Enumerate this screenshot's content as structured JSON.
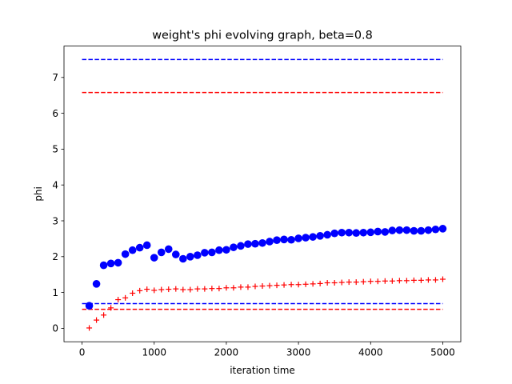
{
  "chart_data": {
    "type": "scatter",
    "title": "weight's phi evolving graph, beta=0.8",
    "xlabel": "iteration time",
    "ylabel": "phi",
    "xlim": [
      -250,
      5250
    ],
    "ylim": [
      -0.375,
      7.875
    ],
    "xticks": [
      0,
      1000,
      2000,
      3000,
      4000,
      5000
    ],
    "yticks": [
      0,
      1,
      2,
      3,
      4,
      5,
      6,
      7
    ],
    "grid": false,
    "legend": "none",
    "series": [
      {
        "marker": "circle",
        "color": "#0000ff",
        "x": [
          100,
          200,
          300,
          400,
          500,
          600,
          700,
          800,
          900,
          1000,
          1100,
          1200,
          1300,
          1400,
          1500,
          1600,
          1700,
          1800,
          1900,
          2000,
          2100,
          2200,
          2300,
          2400,
          2500,
          2600,
          2700,
          2800,
          2900,
          3000,
          3100,
          3200,
          3300,
          3400,
          3500,
          3600,
          3700,
          3800,
          3900,
          4000,
          4100,
          4200,
          4300,
          4400,
          4500,
          4600,
          4700,
          4800,
          4900,
          5000
        ],
        "y": [
          0.63,
          1.24,
          1.76,
          1.81,
          1.83,
          2.07,
          2.18,
          2.25,
          2.32,
          1.97,
          2.12,
          2.21,
          2.06,
          1.94,
          2.0,
          2.04,
          2.11,
          2.12,
          2.18,
          2.19,
          2.26,
          2.3,
          2.35,
          2.36,
          2.38,
          2.42,
          2.46,
          2.48,
          2.47,
          2.51,
          2.53,
          2.55,
          2.58,
          2.61,
          2.65,
          2.67,
          2.67,
          2.66,
          2.67,
          2.68,
          2.7,
          2.69,
          2.73,
          2.74,
          2.74,
          2.72,
          2.72,
          2.74,
          2.76,
          2.78
        ]
      },
      {
        "marker": "plus",
        "color": "#ff0000",
        "x": [
          100,
          200,
          300,
          400,
          500,
          600,
          700,
          800,
          900,
          1000,
          1100,
          1200,
          1300,
          1400,
          1500,
          1600,
          1700,
          1800,
          1900,
          2000,
          2100,
          2200,
          2300,
          2400,
          2500,
          2600,
          2700,
          2800,
          2900,
          3000,
          3100,
          3200,
          3300,
          3400,
          3500,
          3600,
          3700,
          3800,
          3900,
          4000,
          4100,
          4200,
          4300,
          4400,
          4500,
          4600,
          4700,
          4800,
          4900,
          5000
        ],
        "y": [
          0.01,
          0.23,
          0.37,
          0.57,
          0.8,
          0.85,
          0.98,
          1.05,
          1.09,
          1.06,
          1.08,
          1.09,
          1.1,
          1.08,
          1.08,
          1.1,
          1.1,
          1.11,
          1.11,
          1.13,
          1.13,
          1.15,
          1.15,
          1.17,
          1.18,
          1.19,
          1.2,
          1.21,
          1.22,
          1.22,
          1.23,
          1.24,
          1.25,
          1.27,
          1.27,
          1.28,
          1.29,
          1.29,
          1.3,
          1.31,
          1.31,
          1.32,
          1.32,
          1.33,
          1.33,
          1.34,
          1.34,
          1.35,
          1.35,
          1.37
        ]
      }
    ],
    "reference_lines": [
      {
        "y": 7.5,
        "color": "#0000ff",
        "style": "dashed",
        "x_from": 0,
        "x_to": 5000
      },
      {
        "y": 6.58,
        "color": "#ff0000",
        "style": "dashed",
        "x_from": 0,
        "x_to": 5000
      },
      {
        "y": 0.69,
        "color": "#0000ff",
        "style": "dashed",
        "x_from": 0,
        "x_to": 5000
      },
      {
        "y": 0.53,
        "color": "#ff0000",
        "style": "dashed",
        "x_from": 0,
        "x_to": 5000
      }
    ]
  }
}
